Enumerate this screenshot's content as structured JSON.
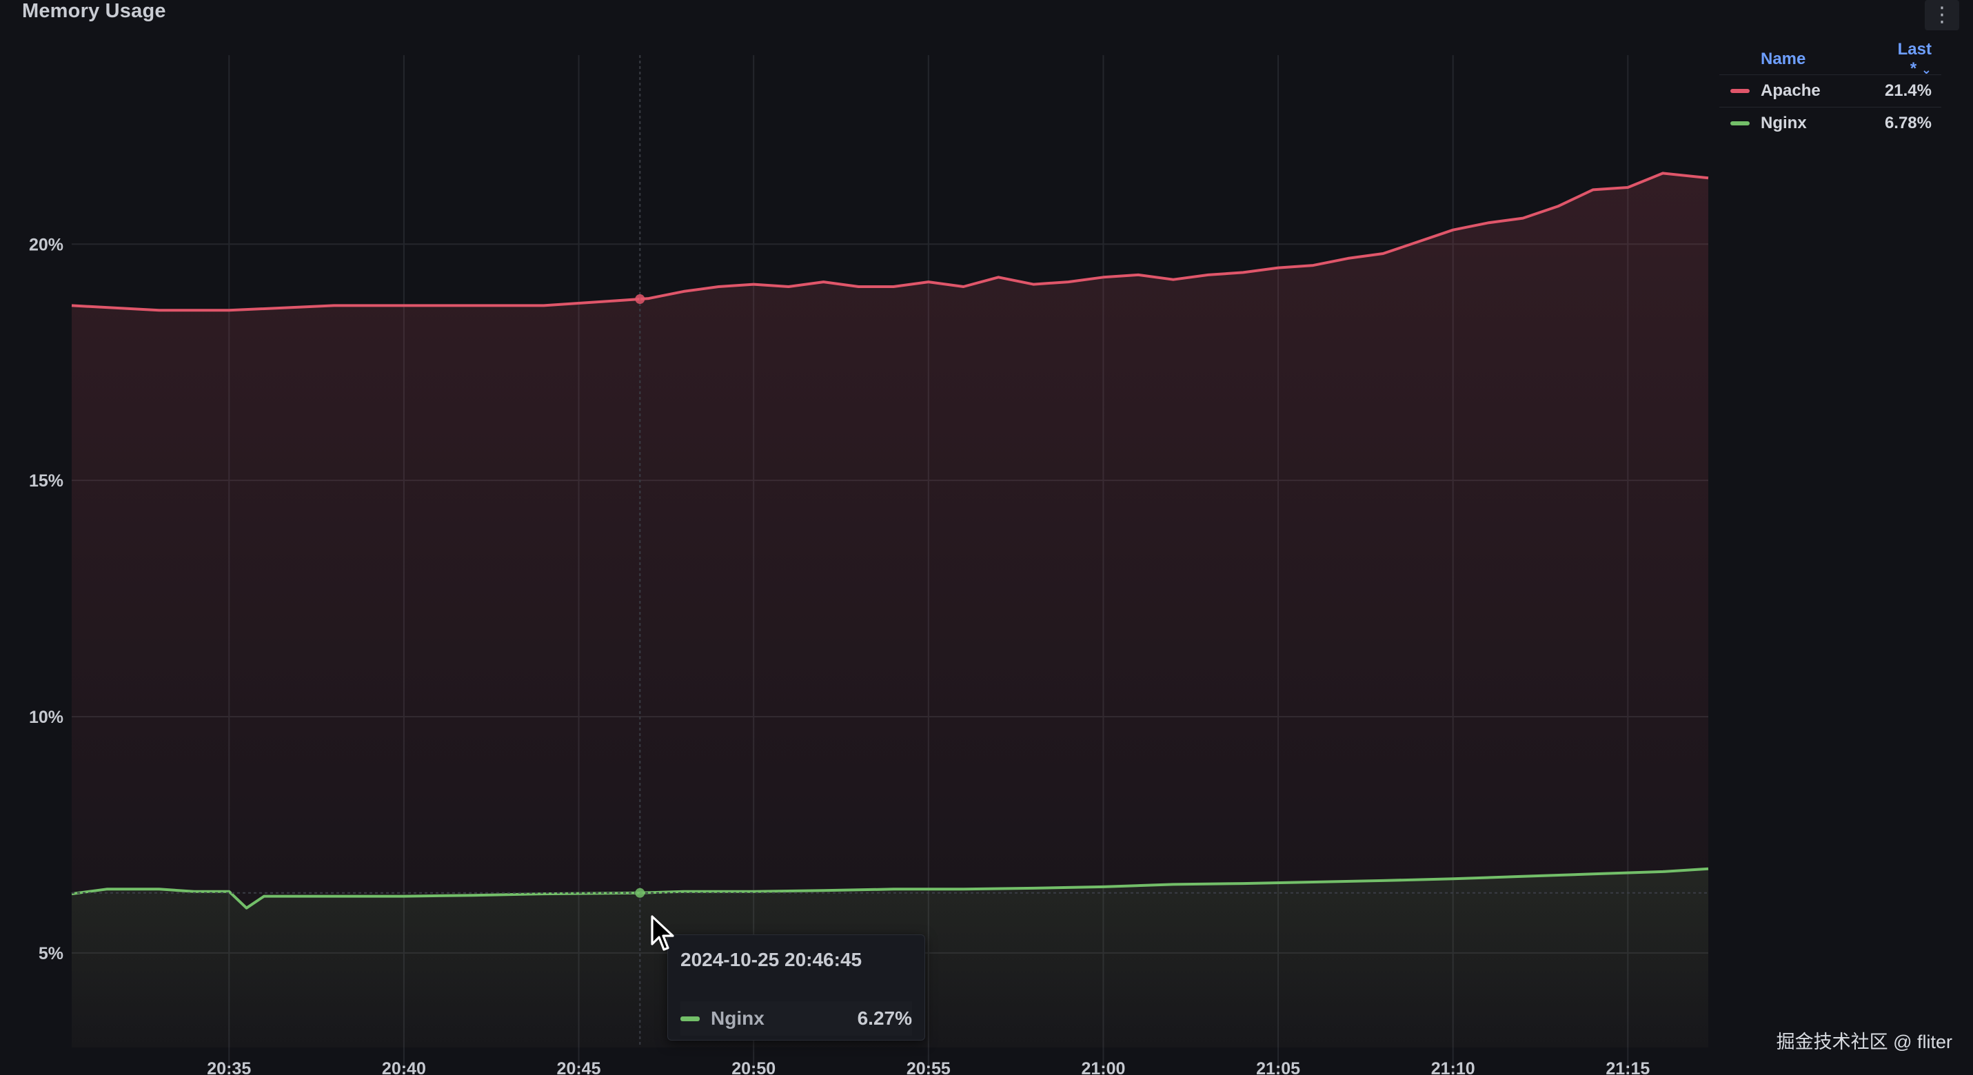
{
  "panel": {
    "title": "Memory Usage",
    "menu_icon": "kebab-vertical-icon"
  },
  "legend": {
    "header_name": "Name",
    "header_last": "Last *",
    "sort_icon": "chevron-down-icon",
    "items": [
      {
        "name": "Apache",
        "value": "21.4%",
        "color": "#e0566a"
      },
      {
        "name": "Nginx",
        "value": "6.78%",
        "color": "#73bf69"
      }
    ]
  },
  "tooltip": {
    "time": "2024-10-25 20:46:45",
    "series": "Nginx",
    "value": "6.27%",
    "color": "#73bf69"
  },
  "watermark": "掘金技术社区 @ fliter",
  "chart_data": {
    "type": "area",
    "yticks": [
      "5%",
      "10%",
      "15%",
      "20%"
    ],
    "ytick_values": [
      5,
      10,
      15,
      20
    ],
    "ylim": [
      3,
      24
    ],
    "xticks": [
      "20:35",
      "20:40",
      "20:45",
      "20:50",
      "20:55",
      "21:00",
      "21:05",
      "21:10",
      "21:15"
    ],
    "xtick_minutes": [
      35,
      40,
      45,
      50,
      55,
      60,
      65,
      70,
      75
    ],
    "xlim_minutes": [
      30.5,
      77.3
    ],
    "grid": true,
    "legend_position": "top-right",
    "hover_minute": 46.75,
    "series": [
      {
        "name": "Apache",
        "color": "#e0566a",
        "x": [
          30.5,
          33,
          35,
          38,
          40,
          42,
          44,
          46,
          47,
          48,
          49,
          50,
          51,
          52,
          53,
          54,
          55,
          56,
          57,
          58,
          59,
          60,
          61,
          62,
          63,
          64,
          65,
          66,
          67,
          68,
          69,
          70,
          71,
          72,
          73,
          74,
          75,
          76,
          77.3
        ],
        "y": [
          18.7,
          18.6,
          18.6,
          18.7,
          18.7,
          18.7,
          18.7,
          18.8,
          18.85,
          19.0,
          19.1,
          19.15,
          19.1,
          19.2,
          19.1,
          19.1,
          19.2,
          19.1,
          19.3,
          19.15,
          19.2,
          19.3,
          19.35,
          19.25,
          19.35,
          19.4,
          19.5,
          19.55,
          19.7,
          19.8,
          20.05,
          20.3,
          20.45,
          20.55,
          20.8,
          21.15,
          21.2,
          21.5,
          21.4
        ]
      },
      {
        "name": "Nginx",
        "color": "#73bf69",
        "x": [
          30.5,
          31.5,
          33,
          34,
          35,
          35.5,
          36,
          38,
          40,
          42,
          44,
          46.75,
          48,
          50,
          52,
          54,
          56,
          58,
          60,
          62,
          64,
          66,
          68,
          70,
          72,
          74,
          76,
          77.3
        ],
        "y": [
          6.25,
          6.35,
          6.35,
          6.3,
          6.3,
          5.95,
          6.2,
          6.2,
          6.2,
          6.22,
          6.25,
          6.27,
          6.3,
          6.3,
          6.32,
          6.35,
          6.35,
          6.37,
          6.4,
          6.45,
          6.47,
          6.5,
          6.53,
          6.57,
          6.62,
          6.67,
          6.72,
          6.78
        ]
      }
    ]
  }
}
